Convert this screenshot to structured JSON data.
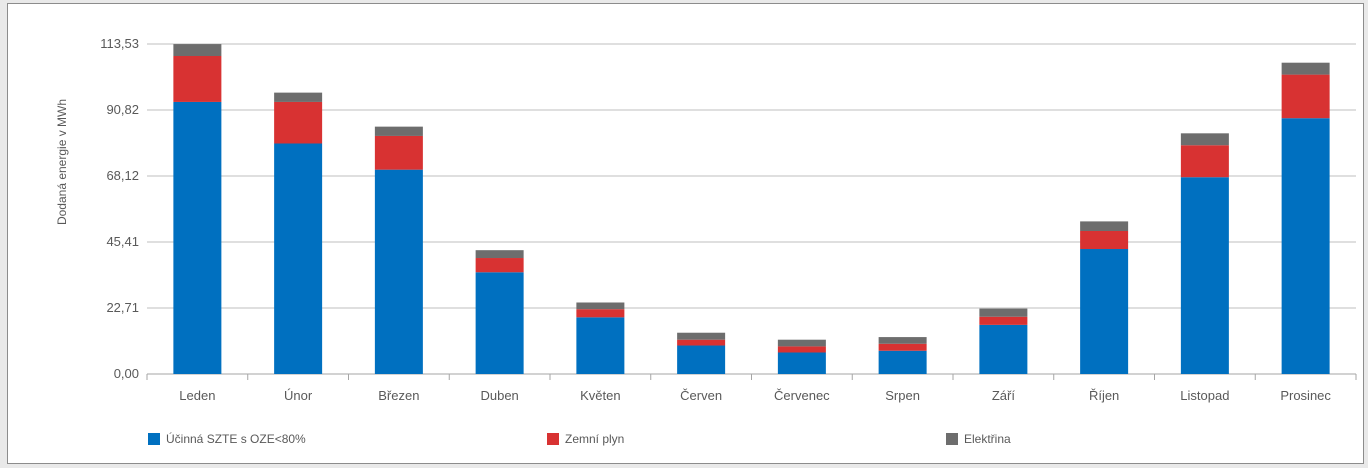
{
  "chart_data": {
    "type": "bar",
    "stacked": true,
    "ylabel": "Dodaná energie v MWh",
    "xlabel": "",
    "ylim": [
      0,
      113.53
    ],
    "yticks": [
      "0,00",
      "22,71",
      "45,41",
      "68,12",
      "90,82",
      "113,53"
    ],
    "grid": true,
    "legend_position": "bottom",
    "categories": [
      "Leden",
      "Únor",
      "Březen",
      "Duben",
      "Květen",
      "Červen",
      "Červenec",
      "Srpen",
      "Září",
      "Říjen",
      "Listopad",
      "Prosinec"
    ],
    "series": [
      {
        "name": "Účinná SZTE s OZE<80%",
        "color": "#0070c0",
        "values": [
          93.6,
          79.3,
          70.3,
          35.0,
          19.5,
          9.8,
          7.4,
          8.0,
          16.9,
          43.0,
          67.7,
          88.0
        ]
      },
      {
        "name": "Zemní plyn",
        "color": "#d83232",
        "values": [
          15.8,
          14.3,
          11.6,
          4.9,
          2.8,
          2.0,
          2.1,
          2.4,
          2.8,
          6.2,
          11.0,
          15.0
        ]
      },
      {
        "name": "Elektřina",
        "color": "#6d6d6d",
        "values": [
          4.1,
          3.2,
          3.2,
          2.7,
          2.3,
          2.4,
          2.3,
          2.3,
          2.8,
          3.3,
          4.1,
          4.1
        ]
      }
    ]
  }
}
